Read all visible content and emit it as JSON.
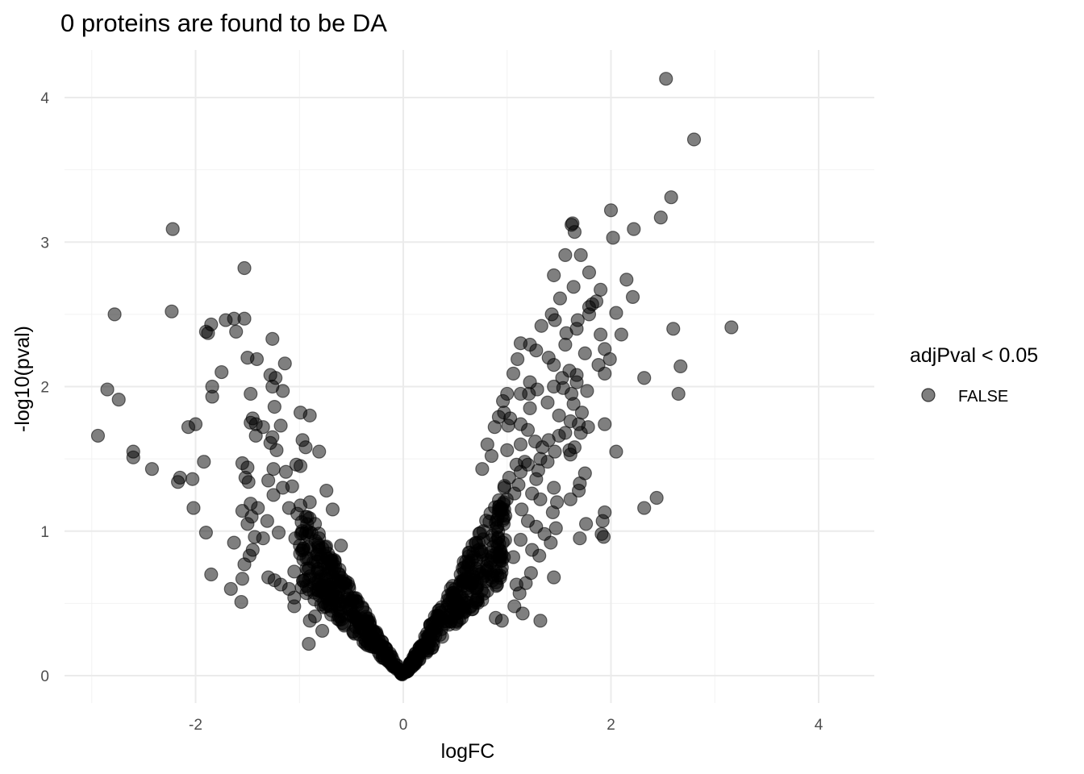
{
  "chart_data": {
    "type": "scatter",
    "title": "0 proteins are found to be DA",
    "xlabel": "logFC",
    "ylabel": "-log10(pval)",
    "xlim": [
      -3.0,
      4.3
    ],
    "ylim": [
      -0.2,
      4.3
    ],
    "x_ticks": [
      -2,
      0,
      2,
      4
    ],
    "x_tick_labels": [
      "-2",
      "0",
      "2",
      "4"
    ],
    "y_ticks": [
      0,
      1,
      2,
      3,
      4
    ],
    "y_tick_labels": [
      "0",
      "1",
      "2",
      "3",
      "4"
    ],
    "grid": true,
    "legend": {
      "title": "adjPval < 0.05",
      "position": "right",
      "entries": [
        {
          "label": "FALSE",
          "color": "#000000"
        }
      ]
    },
    "point_color": "#000000",
    "point_opacity": 0.5,
    "series": [
      {
        "values_note": "",
        "points": [
          [
            2.53,
            4.13
          ],
          [
            2.8,
            3.71
          ],
          [
            2.58,
            3.31
          ],
          [
            2.48,
            3.17
          ],
          [
            2.0,
            3.22
          ],
          [
            2.22,
            3.09
          ],
          [
            2.02,
            3.03
          ],
          [
            1.63,
            3.13
          ],
          [
            1.62,
            3.12
          ],
          [
            1.65,
            3.07
          ],
          [
            1.56,
            2.91
          ],
          [
            1.71,
            2.91
          ],
          [
            1.79,
            2.79
          ],
          [
            2.15,
            2.74
          ],
          [
            1.45,
            2.77
          ],
          [
            1.64,
            2.69
          ],
          [
            1.9,
            2.67
          ],
          [
            2.21,
            2.62
          ],
          [
            1.51,
            2.61
          ],
          [
            1.86,
            2.59
          ],
          [
            1.79,
            2.55
          ],
          [
            1.82,
            2.57
          ],
          [
            1.43,
            2.5
          ],
          [
            1.79,
            2.5
          ],
          [
            2.05,
            2.51
          ],
          [
            1.46,
            2.46
          ],
          [
            1.68,
            2.46
          ],
          [
            1.57,
            2.37
          ],
          [
            1.33,
            2.42
          ],
          [
            1.67,
            2.4
          ],
          [
            2.6,
            2.4
          ],
          [
            3.16,
            2.41
          ],
          [
            1.9,
            2.36
          ],
          [
            2.1,
            2.36
          ],
          [
            1.13,
            2.3
          ],
          [
            1.22,
            2.29
          ],
          [
            1.56,
            2.29
          ],
          [
            1.28,
            2.25
          ],
          [
            1.75,
            2.23
          ],
          [
            1.94,
            2.26
          ],
          [
            1.4,
            2.2
          ],
          [
            1.88,
            2.15
          ],
          [
            1.99,
            2.19
          ],
          [
            1.1,
            2.19
          ],
          [
            1.45,
            2.15
          ],
          [
            2.67,
            2.14
          ],
          [
            1.6,
            2.11
          ],
          [
            1.67,
            2.08
          ],
          [
            1.06,
            2.09
          ],
          [
            1.94,
            2.09
          ],
          [
            2.32,
            2.06
          ],
          [
            1.22,
            2.03
          ],
          [
            1.53,
            2.06
          ],
          [
            1.67,
            2.03
          ],
          [
            1.45,
            2.0
          ],
          [
            1.54,
            1.99
          ],
          [
            1.29,
            1.98
          ],
          [
            1.77,
            1.97
          ],
          [
            1.62,
            1.95
          ],
          [
            1.0,
            1.95
          ],
          [
            1.13,
            1.95
          ],
          [
            1.21,
            1.95
          ],
          [
            2.65,
            1.95
          ],
          [
            1.39,
            1.89
          ],
          [
            1.64,
            1.88
          ],
          [
            1.22,
            1.85
          ],
          [
            0.96,
            1.9
          ],
          [
            1.72,
            1.82
          ],
          [
            1.5,
            1.8
          ],
          [
            0.92,
            1.79
          ],
          [
            0.97,
            1.82
          ],
          [
            1.03,
            1.78
          ],
          [
            1.13,
            1.74
          ],
          [
            1.61,
            1.76
          ],
          [
            1.69,
            1.74
          ],
          [
            1.78,
            1.72
          ],
          [
            1.94,
            1.74
          ],
          [
            1.71,
            1.68
          ],
          [
            1.2,
            1.7
          ],
          [
            1.5,
            1.66
          ],
          [
            1.56,
            1.68
          ],
          [
            0.88,
            1.72
          ],
          [
            1.01,
            1.73
          ],
          [
            1.27,
            1.62
          ],
          [
            1.4,
            1.63
          ],
          [
            1.6,
            1.56
          ],
          [
            1.65,
            1.58
          ],
          [
            1.34,
            1.58
          ],
          [
            1.13,
            1.6
          ],
          [
            1.46,
            1.55
          ],
          [
            1.61,
            1.53
          ],
          [
            2.05,
            1.55
          ],
          [
            0.81,
            1.6
          ],
          [
            0.85,
            1.52
          ],
          [
            1.0,
            1.56
          ],
          [
            1.17,
            1.48
          ],
          [
            1.32,
            1.5
          ],
          [
            1.39,
            1.48
          ],
          [
            1.2,
            1.46
          ],
          [
            1.09,
            1.46
          ],
          [
            1.13,
            1.41
          ],
          [
            1.3,
            1.42
          ],
          [
            1.75,
            1.4
          ],
          [
            1.7,
            1.33
          ],
          [
            1.69,
            1.28
          ],
          [
            1.45,
            1.3
          ],
          [
            1.28,
            1.36
          ],
          [
            0.76,
            1.43
          ],
          [
            1.02,
            1.37
          ],
          [
            1.11,
            1.32
          ],
          [
            1.07,
            1.26
          ],
          [
            1.24,
            1.26
          ],
          [
            1.32,
            1.22
          ],
          [
            1.48,
            1.2
          ],
          [
            1.61,
            1.22
          ],
          [
            1.44,
            1.13
          ],
          [
            2.44,
            1.23
          ],
          [
            2.32,
            1.16
          ],
          [
            1.94,
            1.13
          ],
          [
            1.76,
            1.05
          ],
          [
            1.92,
            1.07
          ],
          [
            1.91,
            0.98
          ],
          [
            1.93,
            0.96
          ],
          [
            1.7,
            0.95
          ],
          [
            1.14,
            1.15
          ],
          [
            1.2,
            1.07
          ],
          [
            1.28,
            1.03
          ],
          [
            1.47,
            1.02
          ],
          [
            1.36,
            0.98
          ],
          [
            1.42,
            0.92
          ],
          [
            1.13,
            0.94
          ],
          [
            1.24,
            0.87
          ],
          [
            1.31,
            0.83
          ],
          [
            1.06,
            0.82
          ],
          [
            1.23,
            0.71
          ],
          [
            1.45,
            0.68
          ],
          [
            1.18,
            0.64
          ],
          [
            1.09,
            0.63
          ],
          [
            1.12,
            0.57
          ],
          [
            1.07,
            0.48
          ],
          [
            1.15,
            0.43
          ],
          [
            0.89,
            0.4
          ],
          [
            1.32,
            0.38
          ],
          [
            0.95,
            0.38
          ],
          [
            -2.22,
            3.09
          ],
          [
            -1.53,
            2.82
          ],
          [
            -2.78,
            2.5
          ],
          [
            -2.23,
            2.52
          ],
          [
            -1.63,
            2.47
          ],
          [
            -1.71,
            2.46
          ],
          [
            -1.53,
            2.47
          ],
          [
            -1.85,
            2.43
          ],
          [
            -1.61,
            2.38
          ],
          [
            -1.9,
            2.38
          ],
          [
            -1.88,
            2.37
          ],
          [
            -1.26,
            2.33
          ],
          [
            -1.5,
            2.2
          ],
          [
            -1.41,
            2.19
          ],
          [
            -1.14,
            2.16
          ],
          [
            -1.75,
            2.1
          ],
          [
            -1.28,
            2.08
          ],
          [
            -1.23,
            2.06
          ],
          [
            -1.84,
            2.0
          ],
          [
            -1.26,
            2.0
          ],
          [
            -1.16,
            1.97
          ],
          [
            -2.85,
            1.98
          ],
          [
            -2.74,
            1.91
          ],
          [
            -1.47,
            1.95
          ],
          [
            -1.84,
            1.93
          ],
          [
            -1.24,
            1.86
          ],
          [
            -0.99,
            1.82
          ],
          [
            -0.9,
            1.8
          ],
          [
            -1.45,
            1.78
          ],
          [
            -1.42,
            1.74
          ],
          [
            -1.47,
            1.75
          ],
          [
            -1.35,
            1.72
          ],
          [
            -1.18,
            1.73
          ],
          [
            -2.07,
            1.72
          ],
          [
            -2.0,
            1.74
          ],
          [
            -2.94,
            1.66
          ],
          [
            -1.26,
            1.65
          ],
          [
            -1.28,
            1.61
          ],
          [
            -1.42,
            1.66
          ],
          [
            -0.97,
            1.63
          ],
          [
            -0.94,
            1.58
          ],
          [
            -1.22,
            1.56
          ],
          [
            -0.81,
            1.55
          ],
          [
            -2.6,
            1.55
          ],
          [
            -2.6,
            1.51
          ],
          [
            -1.55,
            1.47
          ],
          [
            -1.92,
            1.48
          ],
          [
            -1.5,
            1.44
          ],
          [
            -1.25,
            1.43
          ],
          [
            -2.42,
            1.43
          ],
          [
            -1.13,
            1.41
          ],
          [
            -0.99,
            1.45
          ],
          [
            -1.52,
            1.37
          ],
          [
            -1.49,
            1.34
          ],
          [
            -1.3,
            1.35
          ],
          [
            -2.15,
            1.37
          ],
          [
            -2.03,
            1.36
          ],
          [
            -2.17,
            1.34
          ],
          [
            -1.16,
            1.3
          ],
          [
            -1.25,
            1.25
          ],
          [
            -1.47,
            1.19
          ],
          [
            -1.55,
            1.14
          ],
          [
            -1.4,
            1.16
          ],
          [
            -1.1,
            1.16
          ],
          [
            -1.02,
            1.12
          ],
          [
            -2.02,
            1.16
          ],
          [
            -1.46,
            1.1
          ],
          [
            -1.5,
            1.05
          ],
          [
            -1.31,
            1.07
          ],
          [
            -1.2,
            0.99
          ],
          [
            -1.43,
            0.96
          ],
          [
            -1.35,
            0.95
          ],
          [
            -1.63,
            0.92
          ],
          [
            -1.9,
            0.99
          ],
          [
            -1.45,
            0.87
          ],
          [
            -1.48,
            0.83
          ],
          [
            -1.04,
            0.95
          ],
          [
            -1.53,
            0.77
          ],
          [
            -1.85,
            0.7
          ],
          [
            -1.55,
            0.67
          ],
          [
            -1.3,
            0.68
          ],
          [
            -1.24,
            0.66
          ],
          [
            -1.18,
            0.63
          ],
          [
            -1.66,
            0.6
          ],
          [
            -1.1,
            0.6
          ],
          [
            -1.56,
            0.51
          ],
          [
            -1.05,
            0.54
          ],
          [
            -1.05,
            0.48
          ],
          [
            -0.9,
            0.38
          ],
          [
            -0.91,
            0.22
          ],
          [
            -0.85,
            0.41
          ],
          [
            -0.78,
            0.31
          ],
          [
            -0.93,
            0.62
          ],
          [
            -1.05,
            0.72
          ],
          [
            -0.96,
            0.88
          ],
          [
            -1.07,
            1.31
          ],
          [
            -1.03,
            1.46
          ],
          [
            -0.9,
            1.2
          ],
          [
            -0.85,
            1.05
          ],
          [
            -0.74,
            1.28
          ],
          [
            -0.81,
            0.95
          ],
          [
            -0.68,
            1.15
          ],
          [
            -0.6,
            0.9
          ]
        ],
        "cluster_left": {
          "x_range": [
            -1.0,
            -0.02
          ],
          "y_at_edge": 1.1,
          "count": 300
        },
        "cluster_right": {
          "x_range": [
            0.02,
            1.0
          ],
          "y_at_edge": 1.25,
          "count": 320
        }
      }
    ]
  }
}
